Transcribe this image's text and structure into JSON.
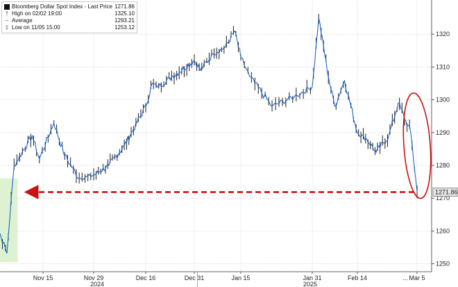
{
  "legend": {
    "title": "Bloomberg Dollar Spot Index - Last Price",
    "last_value": "1271.86",
    "rows": [
      {
        "label": "High on 02/02 19:00",
        "value": "1325.10"
      },
      {
        "label": "Average",
        "value": "1293.21"
      },
      {
        "label": "Low on 11/05 15:00",
        "value": "1253.12"
      }
    ]
  },
  "chart_data": {
    "type": "line",
    "series": [
      {
        "name": "Bloomberg Dollar Spot Index - Last Price",
        "x": [
          "11/01",
          "11/05",
          "11/07",
          "11/12",
          "11/14",
          "11/18",
          "11/21",
          "11/25",
          "11/29",
          "12/04",
          "12/09",
          "12/12",
          "12/16",
          "12/18",
          "12/20",
          "12/24",
          "12/31",
          "01/02",
          "01/06",
          "01/10",
          "01/13",
          "01/15",
          "01/17",
          "01/22",
          "01/27",
          "01/31",
          "02/02",
          "02/05",
          "02/07",
          "02/10",
          "02/14",
          "02/17",
          "02/20",
          "02/24",
          "02/27",
          "03/03",
          "03/05"
        ],
        "y": [
          1266,
          1253.12,
          1280,
          1289,
          1282,
          1293,
          1283,
          1276,
          1277,
          1280,
          1286,
          1291,
          1298,
          1305,
          1304,
          1307,
          1312,
          1309,
          1314,
          1316,
          1321,
          1313,
          1307,
          1298,
          1301,
          1304,
          1325.1,
          1307,
          1298,
          1306,
          1290,
          1288,
          1284,
          1289,
          1299,
          1290,
          1271.86
        ]
      }
    ],
    "x_tick_labels": [
      "Nov 15",
      "Nov 29",
      "Dec 16",
      "Dec 31",
      "Jan 15",
      "Jan 31",
      "Feb 14",
      "Mar 5"
    ],
    "x_tick_dates": [
      "11/15",
      "11/29",
      "12/16",
      "12/31",
      "01/15",
      "01/31",
      "02/14",
      "03/05"
    ],
    "year_labels": [
      "2024",
      "2025"
    ],
    "y_ticks": [
      1250,
      1260,
      1270,
      1280,
      1290,
      1300,
      1310,
      1320
    ],
    "ylim": [
      1248,
      1330
    ],
    "grid": true,
    "last_price_label": "1271.86",
    "colors": {
      "line": "#1e64c8",
      "candle": "#1a1a1a",
      "annotation": "#cc1111",
      "highlight": "#d6f0c8",
      "last_price_box": "#e6e6e6"
    }
  }
}
